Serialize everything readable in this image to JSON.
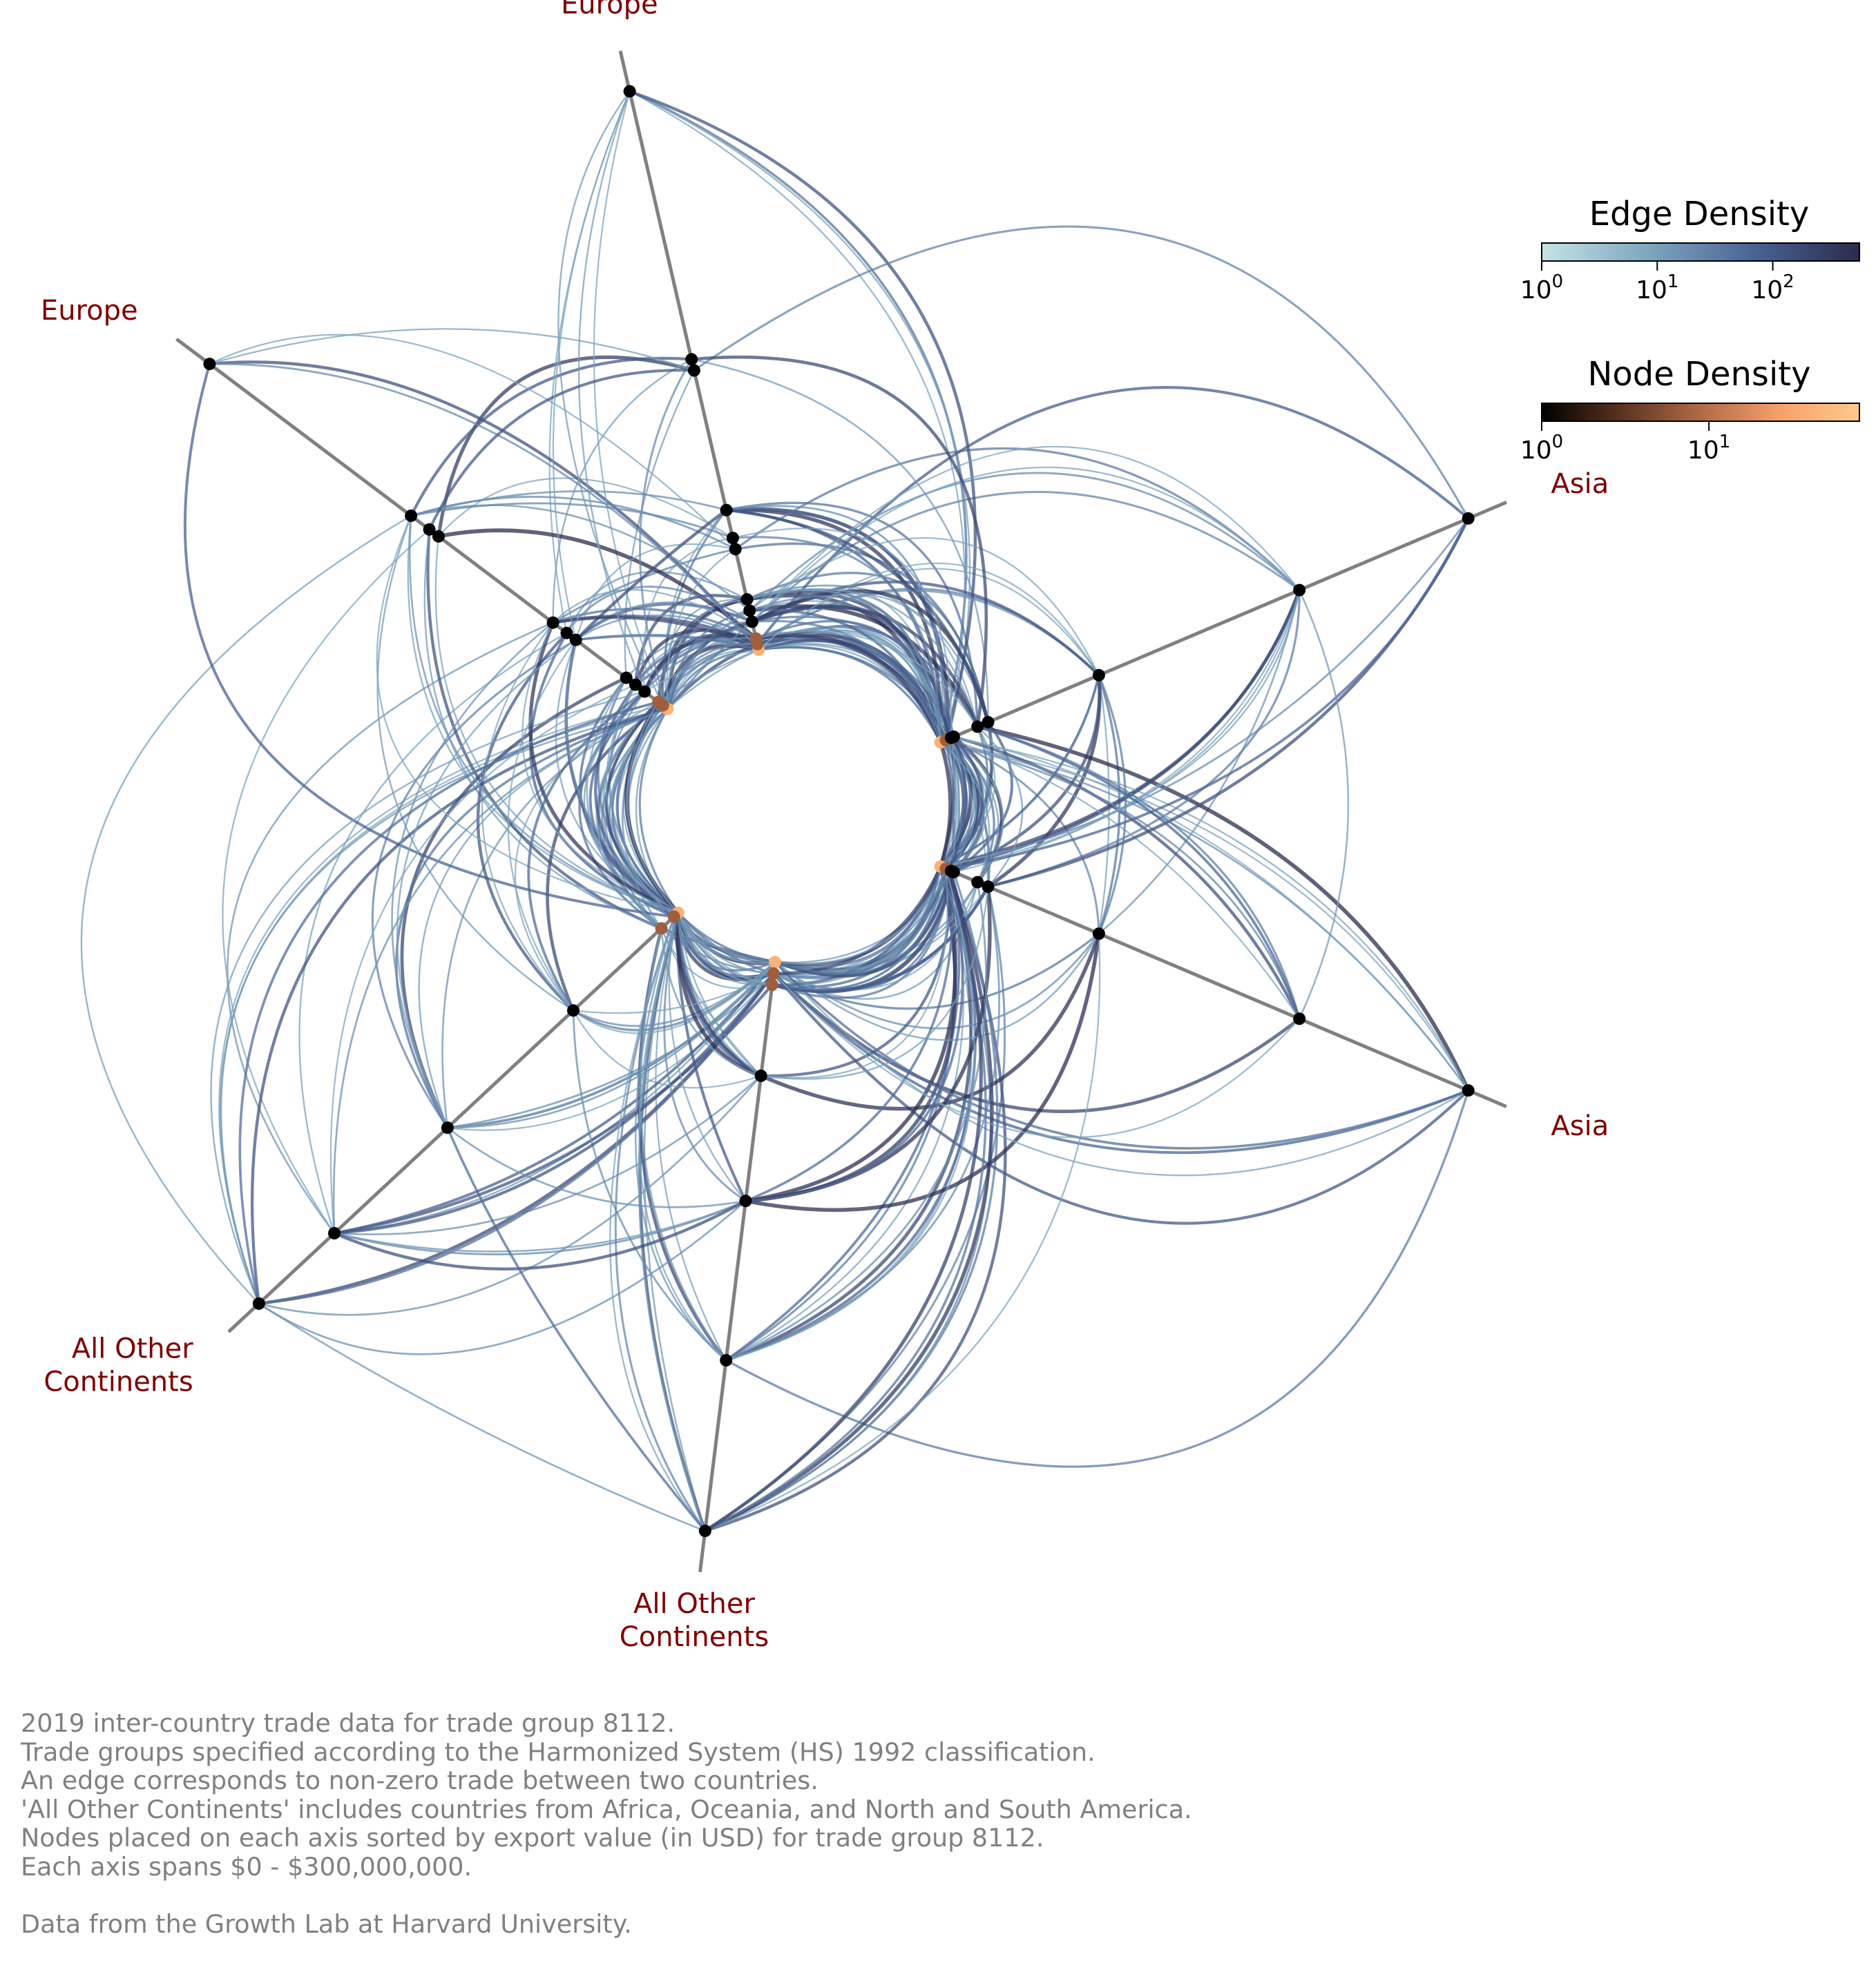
{
  "chart_data": {
    "type": "hive_plot",
    "axes": [
      {
        "label": "Europe",
        "angle_deg": 103
      },
      {
        "label": "Asia",
        "angle_deg": 23
      },
      {
        "label": "Asia",
        "angle_deg": -23
      },
      {
        "label": "All Other\nContinents",
        "angle_deg": -97
      },
      {
        "label": "All Other\nContinents",
        "angle_deg": -137
      },
      {
        "label": "Europe",
        "angle_deg": 143
      }
    ],
    "axis_span": "$0 - $300,000,000",
    "legends": {
      "edge": {
        "title": "Edge Density",
        "colormap": [
          "#c4e3e5",
          "#7fa7c0",
          "#4a6394",
          "#2a2b4d"
        ],
        "ticks": [
          "10^0",
          "10^1",
          "10^2"
        ]
      },
      "node": {
        "title": "Node Density",
        "colormap": [
          "#000000",
          "#5a3320",
          "#b06a45",
          "#f7a06a",
          "#fdca8b"
        ],
        "ticks": [
          "10^0",
          "10^1"
        ]
      }
    },
    "notes": [
      "2019 inter-country trade data for trade group 8112.",
      "Trade groups specified according to the Harmonized System (HS) 1992 classification.",
      "An edge corresponds to non-zero trade between two countries.",
      "'All Other Continents' includes countries from Africa, Oceania, and North and South America.",
      "Nodes placed on each axis sorted by export value (in USD) for trade group 8112.",
      "Each axis spans $0 - $300,000,000.",
      "",
      "Data from the Growth Lab at Harvard University."
    ]
  }
}
